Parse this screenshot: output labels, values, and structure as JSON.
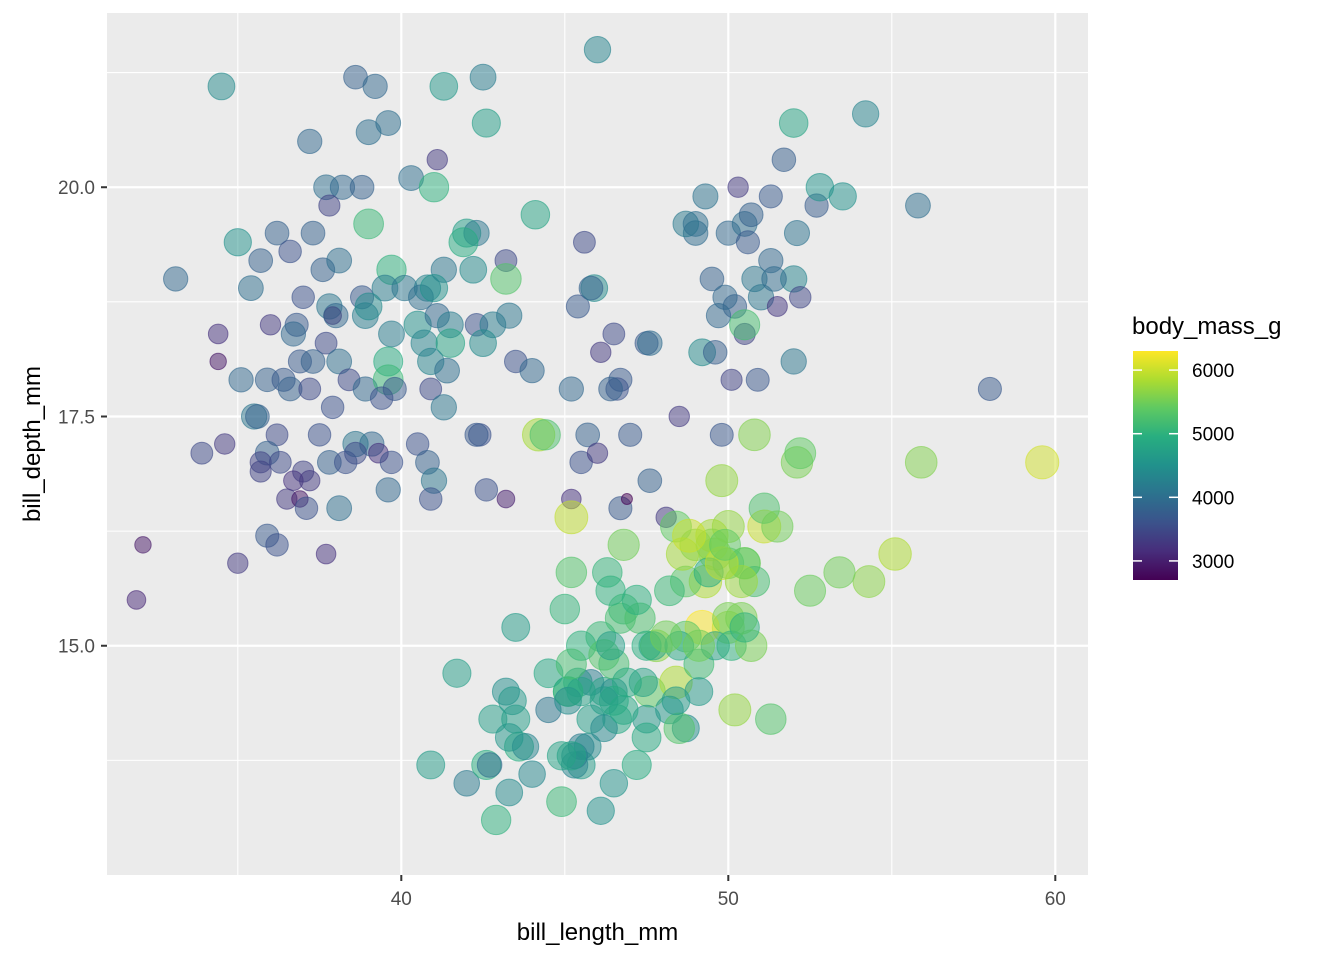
{
  "chart_data": {
    "type": "scatter",
    "title": "",
    "xlabel": "bill_length_mm",
    "ylabel": "bill_depth_mm",
    "xlim": [
      31,
      61
    ],
    "ylim": [
      12.5,
      21.9
    ],
    "x_ticks": [
      40,
      50,
      60
    ],
    "x_tick_labels": [
      "40",
      "50",
      "60"
    ],
    "y_ticks": [
      15.0,
      17.5,
      20.0
    ],
    "y_tick_labels": [
      "15.0",
      "17.5",
      "20.0"
    ],
    "grid": true,
    "legend": {
      "title": "body_mass_g",
      "placement": "right",
      "type": "colorbar",
      "colormap": "viridis",
      "range": [
        2700,
        6300
      ],
      "ticks": [
        3000,
        4000,
        5000,
        6000
      ],
      "tick_labels": [
        "3000",
        "4000",
        "5000",
        "6000"
      ]
    },
    "point_alpha": 0.5,
    "size_by": "body_mass_g",
    "columns": [
      "bill_length_mm",
      "bill_depth_mm",
      "body_mass_g"
    ],
    "points": [
      [
        34.5,
        21.1,
        4400
      ],
      [
        38.6,
        21.2,
        3800
      ],
      [
        39.2,
        21.1,
        3900
      ],
      [
        41.3,
        21.1,
        4600
      ],
      [
        42.5,
        21.2,
        4200
      ],
      [
        46.0,
        21.5,
        4300
      ],
      [
        42.6,
        20.7,
        4700
      ],
      [
        39.0,
        20.6,
        4000
      ],
      [
        39.6,
        20.7,
        4000
      ],
      [
        37.2,
        20.5,
        3900
      ],
      [
        41.1,
        20.3,
        3300
      ],
      [
        37.7,
        20.0,
        4000
      ],
      [
        38.2,
        20.0,
        3900
      ],
      [
        38.8,
        20.0,
        3800
      ],
      [
        40.3,
        20.1,
        4000
      ],
      [
        41.0,
        20.0,
        5000
      ],
      [
        37.8,
        19.8,
        3400
      ],
      [
        39.0,
        19.6,
        5100
      ],
      [
        35.0,
        19.4,
        4500
      ],
      [
        36.2,
        19.5,
        3800
      ],
      [
        37.3,
        19.5,
        3800
      ],
      [
        42.0,
        19.5,
        4700
      ],
      [
        42.3,
        19.5,
        4100
      ],
      [
        44.1,
        19.7,
        4800
      ],
      [
        41.9,
        19.4,
        4900
      ],
      [
        35.7,
        19.2,
        3800
      ],
      [
        36.6,
        19.3,
        3600
      ],
      [
        37.6,
        19.1,
        3800
      ],
      [
        38.1,
        19.2,
        4000
      ],
      [
        39.7,
        19.1,
        5000
      ],
      [
        40.8,
        18.9,
        4300
      ],
      [
        41.3,
        19.1,
        4100
      ],
      [
        42.2,
        19.1,
        4400
      ],
      [
        43.2,
        19.2,
        3500
      ],
      [
        43.2,
        19.0,
        5300
      ],
      [
        33.1,
        19.0,
        3900
      ],
      [
        35.4,
        18.9,
        4000
      ],
      [
        37.0,
        18.8,
        3600
      ],
      [
        37.8,
        18.7,
        4100
      ],
      [
        38.8,
        18.8,
        3700
      ],
      [
        39.5,
        18.9,
        4200
      ],
      [
        40.1,
        18.9,
        4100
      ],
      [
        40.6,
        18.8,
        4000
      ],
      [
        41.0,
        18.9,
        4500
      ],
      [
        36.0,
        18.5,
        3300
      ],
      [
        36.8,
        18.5,
        3700
      ],
      [
        37.9,
        18.6,
        3000
      ],
      [
        38.0,
        18.6,
        3900
      ],
      [
        38.9,
        18.6,
        4200
      ],
      [
        39.0,
        18.7,
        4400
      ],
      [
        40.5,
        18.5,
        4500
      ],
      [
        41.1,
        18.6,
        3900
      ],
      [
        41.5,
        18.5,
        4200
      ],
      [
        42.3,
        18.5,
        3600
      ],
      [
        42.8,
        18.5,
        4200
      ],
      [
        43.3,
        18.6,
        4100
      ],
      [
        34.4,
        18.4,
        3200
      ],
      [
        36.7,
        18.4,
        3900
      ],
      [
        37.7,
        18.3,
        3500
      ],
      [
        39.7,
        18.4,
        4200
      ],
      [
        40.7,
        18.3,
        4300
      ],
      [
        41.5,
        18.3,
        4800
      ],
      [
        42.5,
        18.3,
        4400
      ],
      [
        36.9,
        18.1,
        3700
      ],
      [
        37.3,
        18.1,
        3800
      ],
      [
        38.1,
        18.1,
        4000
      ],
      [
        39.6,
        18.1,
        4900
      ],
      [
        40.9,
        18.1,
        4300
      ],
      [
        41.4,
        18.0,
        4000
      ],
      [
        34.4,
        18.1,
        2900
      ],
      [
        35.1,
        17.9,
        3900
      ],
      [
        35.9,
        17.9,
        3800
      ],
      [
        36.4,
        17.9,
        3700
      ],
      [
        36.6,
        17.8,
        3800
      ],
      [
        37.2,
        17.8,
        3500
      ],
      [
        38.4,
        17.9,
        3500
      ],
      [
        38.9,
        17.8,
        3900
      ],
      [
        39.6,
        17.9,
        5100
      ],
      [
        39.8,
        17.8,
        3700
      ],
      [
        39.4,
        17.7,
        3600
      ],
      [
        40.9,
        17.8,
        3500
      ],
      [
        41.3,
        17.6,
        4100
      ],
      [
        37.9,
        17.6,
        3600
      ],
      [
        35.5,
        17.5,
        4100
      ],
      [
        39.1,
        17.2,
        3900
      ],
      [
        35.6,
        17.5,
        3800
      ],
      [
        36.2,
        17.3,
        3500
      ],
      [
        37.5,
        17.3,
        3600
      ],
      [
        38.6,
        17.2,
        4100
      ],
      [
        40.5,
        17.2,
        3600
      ],
      [
        39.3,
        17.1,
        3200
      ],
      [
        38.6,
        17.1,
        3500
      ],
      [
        35.9,
        17.1,
        3800
      ],
      [
        35.7,
        17.0,
        3400
      ],
      [
        36.3,
        17.0,
        3500
      ],
      [
        37.8,
        17.0,
        3800
      ],
      [
        38.3,
        17.0,
        3600
      ],
      [
        39.7,
        17.0,
        3600
      ],
      [
        40.8,
        17.0,
        3800
      ],
      [
        33.9,
        17.1,
        3500
      ],
      [
        34.6,
        17.2,
        3300
      ],
      [
        37.0,
        16.9,
        3400
      ],
      [
        36.7,
        16.8,
        3200
      ],
      [
        42.4,
        17.3,
        3600
      ],
      [
        42.3,
        17.3,
        3700
      ],
      [
        44.2,
        17.3,
        5800
      ],
      [
        35.7,
        16.9,
        3400
      ],
      [
        37.2,
        16.8,
        3300
      ],
      [
        41.0,
        16.8,
        4100
      ],
      [
        39.6,
        16.7,
        3900
      ],
      [
        42.6,
        16.7,
        3600
      ],
      [
        36.5,
        16.6,
        3300
      ],
      [
        36.9,
        16.6,
        2900
      ],
      [
        40.9,
        16.6,
        3600
      ],
      [
        43.2,
        16.6,
        3000
      ],
      [
        37.1,
        16.5,
        3600
      ],
      [
        38.1,
        16.5,
        4000
      ],
      [
        35.9,
        16.2,
        3700
      ],
      [
        32.1,
        16.1,
        2900
      ],
      [
        36.2,
        16.1,
        3600
      ],
      [
        37.7,
        16.0,
        3200
      ],
      [
        35.0,
        15.9,
        3300
      ],
      [
        31.9,
        15.5,
        3100
      ],
      [
        45.6,
        19.4,
        3500
      ],
      [
        46.1,
        18.2,
        3300
      ],
      [
        45.4,
        18.7,
        3700
      ],
      [
        46.5,
        18.4,
        3500
      ],
      [
        45.9,
        18.9,
        4400
      ],
      [
        45.8,
        18.9,
        3800
      ],
      [
        47.5,
        18.3,
        3700
      ],
      [
        46.7,
        17.9,
        3700
      ],
      [
        46.6,
        17.8,
        3600
      ],
      [
        46.4,
        17.8,
        3800
      ],
      [
        45.2,
        17.8,
        3900
      ],
      [
        43.5,
        18.1,
        3600
      ],
      [
        44.0,
        18.0,
        3900
      ],
      [
        45.5,
        17.0,
        3600
      ],
      [
        45.7,
        17.3,
        3800
      ],
      [
        46.0,
        17.1,
        3300
      ],
      [
        47.0,
        17.3,
        3700
      ],
      [
        48.5,
        17.5,
        3300
      ],
      [
        47.6,
        16.8,
        3800
      ],
      [
        46.7,
        16.5,
        3700
      ],
      [
        46.9,
        16.6,
        2700
      ],
      [
        48.1,
        16.4,
        3300
      ],
      [
        45.2,
        16.6,
        3200
      ],
      [
        49.5,
        19.0,
        3800
      ],
      [
        50.0,
        19.5,
        3900
      ],
      [
        50.5,
        19.6,
        4000
      ],
      [
        50.8,
        19.0,
        4100
      ],
      [
        51.0,
        18.8,
        4100
      ],
      [
        51.3,
        19.2,
        3900
      ],
      [
        51.3,
        19.9,
        3700
      ],
      [
        51.5,
        18.7,
        3250
      ],
      [
        51.7,
        20.3,
        3775
      ],
      [
        52.0,
        20.7,
        4800
      ],
      [
        52.0,
        18.1,
        4100
      ],
      [
        52.0,
        19.0,
        4300
      ],
      [
        52.2,
        18.8,
        3450
      ],
      [
        52.7,
        19.8,
        3725
      ],
      [
        52.8,
        20.0,
        4550
      ],
      [
        53.5,
        19.9,
        4500
      ],
      [
        54.2,
        20.8,
        4300
      ],
      [
        55.8,
        19.8,
        4000
      ],
      [
        49.0,
        19.5,
        3950
      ],
      [
        49.2,
        18.2,
        4400
      ],
      [
        49.3,
        19.9,
        4050
      ],
      [
        49.6,
        18.2,
        3775
      ],
      [
        50.2,
        18.7,
        3775
      ],
      [
        50.9,
        17.9,
        3675
      ],
      [
        49.8,
        17.3,
        3675
      ],
      [
        50.1,
        17.9,
        3400
      ],
      [
        50.3,
        20.0,
        3300
      ],
      [
        50.5,
        18.4,
        3400
      ],
      [
        50.6,
        19.4,
        3700
      ],
      [
        50.7,
        19.7,
        3800
      ],
      [
        51.4,
        19.0,
        3950
      ],
      [
        48.7,
        19.6,
        4150
      ],
      [
        49.7,
        18.6,
        3900
      ],
      [
        49.9,
        18.8,
        3900
      ],
      [
        52.1,
        19.5,
        4050
      ],
      [
        58.0,
        17.8,
        3700
      ],
      [
        50.5,
        18.5,
        5200
      ],
      [
        49.0,
        19.6,
        4000
      ],
      [
        47.6,
        18.3,
        3950
      ],
      [
        46.1,
        13.2,
        4500
      ],
      [
        50.0,
        16.3,
        5700
      ],
      [
        48.7,
        14.1,
        4450
      ],
      [
        50.0,
        15.2,
        5700
      ],
      [
        47.6,
        14.5,
        5400
      ],
      [
        46.5,
        13.5,
        4550
      ],
      [
        45.4,
        14.6,
        4800
      ],
      [
        46.7,
        15.3,
        5200
      ],
      [
        43.3,
        13.4,
        4400
      ],
      [
        46.8,
        15.4,
        5150
      ],
      [
        40.9,
        13.7,
        4650
      ],
      [
        49.0,
        16.1,
        5550
      ],
      [
        45.5,
        13.7,
        4650
      ],
      [
        48.4,
        14.6,
        5850
      ],
      [
        45.8,
        14.6,
        4200
      ],
      [
        49.3,
        15.7,
        5850
      ],
      [
        42.0,
        13.5,
        4150
      ],
      [
        49.2,
        15.2,
        6300
      ],
      [
        46.2,
        14.5,
        4800
      ],
      [
        48.7,
        15.1,
        5350
      ],
      [
        50.2,
        14.3,
        5700
      ],
      [
        45.1,
        14.5,
        5000
      ],
      [
        46.5,
        14.5,
        4400
      ],
      [
        46.3,
        15.8,
        5050
      ],
      [
        42.9,
        13.1,
        5000
      ],
      [
        46.1,
        15.1,
        5100
      ],
      [
        44.5,
        14.3,
        4100
      ],
      [
        47.8,
        15.0,
        5650
      ],
      [
        48.2,
        14.3,
        4600
      ],
      [
        50.0,
        15.3,
        5550
      ],
      [
        47.3,
        15.3,
        5250
      ],
      [
        42.8,
        14.2,
        4700
      ],
      [
        45.1,
        14.5,
        5050
      ],
      [
        59.6,
        17.0,
        6050
      ],
      [
        49.1,
        14.8,
        5150
      ],
      [
        48.4,
        16.3,
        5400
      ],
      [
        42.6,
        13.7,
        4950
      ],
      [
        44.4,
        17.3,
        5250
      ],
      [
        44.0,
        13.6,
        4350
      ],
      [
        48.7,
        15.7,
        5350
      ],
      [
        42.7,
        13.7,
        3950
      ],
      [
        49.6,
        16.0,
        5700
      ],
      [
        45.3,
        13.7,
        4300
      ],
      [
        49.6,
        15.0,
        4750
      ],
      [
        50.5,
        15.9,
        5550
      ],
      [
        43.6,
        13.9,
        4900
      ],
      [
        45.5,
        13.9,
        4200
      ],
      [
        50.5,
        15.9,
        5400
      ],
      [
        44.9,
        13.3,
        5100
      ],
      [
        45.2,
        15.8,
        5300
      ],
      [
        46.6,
        14.2,
        4850
      ],
      [
        48.5,
        14.1,
        5300
      ],
      [
        45.1,
        14.4,
        4400
      ],
      [
        50.1,
        15.0,
        5000
      ],
      [
        46.5,
        14.4,
        4900
      ],
      [
        45.0,
        15.4,
        5050
      ],
      [
        43.8,
        13.9,
        4300
      ],
      [
        45.5,
        15.0,
        5000
      ],
      [
        43.2,
        14.5,
        4450
      ],
      [
        50.4,
        15.3,
        5550
      ],
      [
        45.3,
        13.8,
        4200
      ],
      [
        46.2,
        14.9,
        5300
      ],
      [
        45.7,
        13.9,
        4400
      ],
      [
        54.3,
        15.7,
        5650
      ],
      [
        45.8,
        14.2,
        4700
      ],
      [
        49.8,
        16.8,
        5700
      ],
      [
        46.2,
        14.4,
        4650
      ],
      [
        49.5,
        16.2,
        5800
      ],
      [
        43.5,
        14.2,
        4700
      ],
      [
        50.7,
        15.0,
        5550
      ],
      [
        47.7,
        15.0,
        4750
      ],
      [
        46.4,
        15.6,
        5000
      ],
      [
        48.2,
        15.6,
        5100
      ],
      [
        46.5,
        14.8,
        5200
      ],
      [
        46.4,
        15.0,
        4700
      ],
      [
        48.6,
        16.0,
        5800
      ],
      [
        47.5,
        14.2,
        4600
      ],
      [
        51.1,
        16.3,
        6000
      ],
      [
        45.2,
        13.8,
        4750
      ],
      [
        45.2,
        16.4,
        5950
      ],
      [
        49.1,
        14.5,
        4625
      ],
      [
        52.5,
        15.6,
        5450
      ],
      [
        47.4,
        14.6,
        4725
      ],
      [
        50.0,
        15.9,
        5350
      ],
      [
        44.9,
        13.8,
        4750
      ],
      [
        50.8,
        17.3,
        5600
      ],
      [
        43.4,
        14.4,
        4600
      ],
      [
        51.3,
        14.2,
        5300
      ],
      [
        47.5,
        14.0,
        4875
      ],
      [
        52.1,
        17.0,
        5550
      ],
      [
        47.5,
        15.0,
        4950
      ],
      [
        52.2,
        17.1,
        5400
      ],
      [
        45.5,
        14.5,
        4750
      ],
      [
        49.5,
        16.1,
        5650
      ],
      [
        44.5,
        14.7,
        4850
      ],
      [
        50.8,
        15.7,
        5200
      ],
      [
        49.4,
        15.8,
        4925
      ],
      [
        46.9,
        14.6,
        4875
      ],
      [
        48.4,
        14.4,
        4625
      ],
      [
        51.1,
        16.5,
        5250
      ],
      [
        48.5,
        15.0,
        4850
      ],
      [
        55.9,
        17.0,
        5600
      ],
      [
        47.2,
        15.5,
        4975
      ],
      [
        49.1,
        15.0,
        5500
      ],
      [
        46.8,
        16.1,
        5500
      ],
      [
        41.7,
        14.7,
        4700
      ],
      [
        53.4,
        15.8,
        5500
      ],
      [
        43.3,
        14.0,
        4575
      ],
      [
        48.1,
        15.1,
        5500
      ],
      [
        50.5,
        15.2,
        5000
      ],
      [
        49.8,
        15.9,
        5950
      ],
      [
        43.5,
        15.2,
        4650
      ],
      [
        51.5,
        16.3,
        5500
      ],
      [
        46.2,
        14.1,
        4375
      ],
      [
        55.1,
        16.0,
        5850
      ],
      [
        48.8,
        16.2,
        6000
      ],
      [
        47.2,
        13.7,
        4925
      ],
      [
        46.8,
        14.3,
        4850
      ],
      [
        50.4,
        15.7,
        5750
      ],
      [
        45.2,
        14.8,
        5200
      ],
      [
        49.9,
        16.1,
        5400
      ]
    ]
  }
}
